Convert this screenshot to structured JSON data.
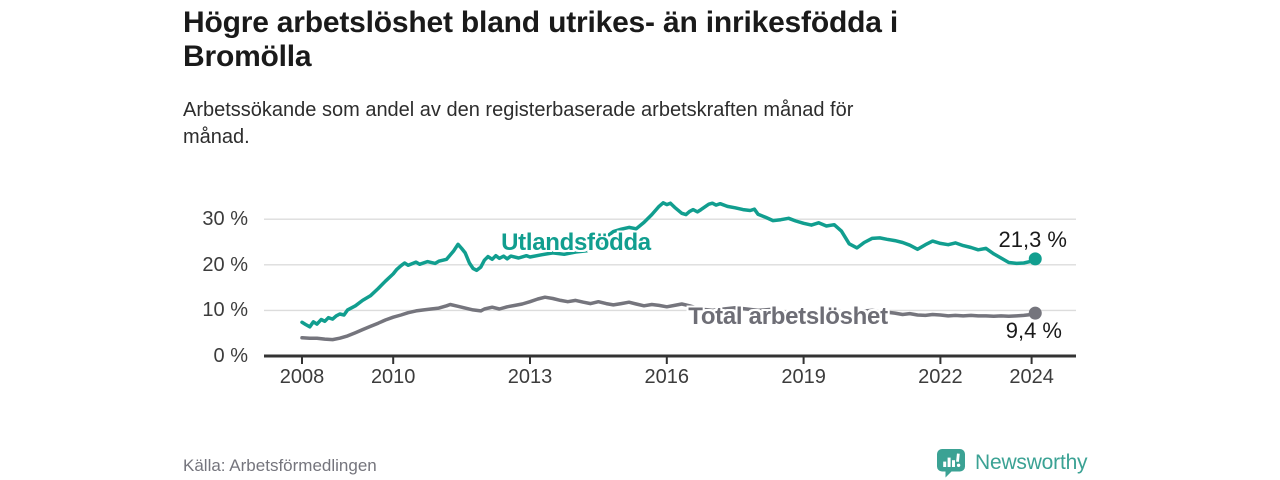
{
  "header": {
    "title_lines": [
      "Högre arbetslöshet bland utrikes- än inrikesfödda i",
      "Bromölla"
    ],
    "subtitle_lines": [
      "Arbetssökande som andel av den registerbaserade arbetskraften månad för",
      "månad."
    ]
  },
  "footer": {
    "source": "Källa: Arbetsförmedlingen",
    "brand": "Newsworthy",
    "brand_icon": "newsworthy-speech-bubble-bar-chart-icon",
    "brand_color": "#3ba294"
  },
  "colors": {
    "grid": "#dcdcdc",
    "axis": "#333333",
    "tick_text": "#3c3c3c",
    "title_text": "#1a1a1a",
    "source_text": "#75757d"
  },
  "chart_data": {
    "type": "line",
    "unit": "%",
    "grid": "horizontal-only",
    "ylim": [
      0,
      35.5
    ],
    "xlim": [
      2007.2,
      2025.0
    ],
    "y_ticks": [
      0,
      10,
      20,
      30
    ],
    "y_tick_labels": [
      "0 %",
      "10 %",
      "20 %",
      "30 %"
    ],
    "x_ticks": [
      2008,
      2010,
      2013,
      2016,
      2019,
      2022,
      2024
    ],
    "x_tick_labels": [
      "2008",
      "2010",
      "2013",
      "2016",
      "2019",
      "2022",
      "2024"
    ],
    "series": [
      {
        "name": "Utlandsfödda",
        "color": "#119e8f",
        "end_value": 21.3,
        "end_label": "21,3 %",
        "points": [
          [
            2008.0,
            7.4
          ],
          [
            2008.08,
            6.9
          ],
          [
            2008.17,
            6.4
          ],
          [
            2008.25,
            7.5
          ],
          [
            2008.33,
            7.0
          ],
          [
            2008.42,
            8.0
          ],
          [
            2008.5,
            7.6
          ],
          [
            2008.58,
            8.4
          ],
          [
            2008.67,
            8.1
          ],
          [
            2008.75,
            8.8
          ],
          [
            2008.83,
            9.2
          ],
          [
            2008.92,
            9.0
          ],
          [
            2009.0,
            10.1
          ],
          [
            2009.17,
            11.0
          ],
          [
            2009.33,
            12.2
          ],
          [
            2009.5,
            13.2
          ],
          [
            2009.67,
            14.8
          ],
          [
            2009.83,
            16.4
          ],
          [
            2010.0,
            18.0
          ],
          [
            2010.08,
            19.0
          ],
          [
            2010.17,
            19.8
          ],
          [
            2010.25,
            20.4
          ],
          [
            2010.33,
            19.9
          ],
          [
            2010.5,
            20.6
          ],
          [
            2010.58,
            20.1
          ],
          [
            2010.75,
            20.7
          ],
          [
            2010.92,
            20.3
          ],
          [
            2011.0,
            20.8
          ],
          [
            2011.17,
            21.2
          ],
          [
            2011.33,
            23.1
          ],
          [
            2011.42,
            24.5
          ],
          [
            2011.5,
            23.6
          ],
          [
            2011.58,
            22.6
          ],
          [
            2011.67,
            20.4
          ],
          [
            2011.75,
            19.2
          ],
          [
            2011.83,
            18.8
          ],
          [
            2011.92,
            19.5
          ],
          [
            2012.0,
            21.0
          ],
          [
            2012.08,
            21.8
          ],
          [
            2012.17,
            21.2
          ],
          [
            2012.25,
            22.0
          ],
          [
            2012.33,
            21.4
          ],
          [
            2012.42,
            21.9
          ],
          [
            2012.5,
            21.3
          ],
          [
            2012.58,
            21.9
          ],
          [
            2012.75,
            21.5
          ],
          [
            2012.92,
            22.0
          ],
          [
            2013.0,
            21.7
          ],
          [
            2013.25,
            22.2
          ],
          [
            2013.5,
            22.6
          ],
          [
            2013.75,
            22.3
          ],
          [
            2014.0,
            22.8
          ],
          [
            2014.25,
            23.1
          ],
          [
            2014.5,
            24.2
          ],
          [
            2014.67,
            26.1
          ],
          [
            2014.83,
            27.3
          ],
          [
            2015.0,
            27.8
          ],
          [
            2015.17,
            28.2
          ],
          [
            2015.33,
            27.9
          ],
          [
            2015.5,
            29.3
          ],
          [
            2015.67,
            31.0
          ],
          [
            2015.83,
            32.8
          ],
          [
            2015.92,
            33.6
          ],
          [
            2016.0,
            33.2
          ],
          [
            2016.08,
            33.5
          ],
          [
            2016.17,
            32.6
          ],
          [
            2016.33,
            31.3
          ],
          [
            2016.42,
            31.0
          ],
          [
            2016.5,
            31.7
          ],
          [
            2016.58,
            32.1
          ],
          [
            2016.67,
            31.6
          ],
          [
            2016.75,
            32.1
          ],
          [
            2016.92,
            33.3
          ],
          [
            2017.0,
            33.5
          ],
          [
            2017.08,
            33.1
          ],
          [
            2017.17,
            33.4
          ],
          [
            2017.33,
            32.8
          ],
          [
            2017.5,
            32.5
          ],
          [
            2017.67,
            32.1
          ],
          [
            2017.83,
            31.9
          ],
          [
            2017.92,
            32.2
          ],
          [
            2018.0,
            31.1
          ],
          [
            2018.17,
            30.4
          ],
          [
            2018.33,
            29.7
          ],
          [
            2018.5,
            29.9
          ],
          [
            2018.67,
            30.2
          ],
          [
            2018.83,
            29.6
          ],
          [
            2019.0,
            29.1
          ],
          [
            2019.17,
            28.7
          ],
          [
            2019.33,
            29.2
          ],
          [
            2019.5,
            28.5
          ],
          [
            2019.67,
            28.8
          ],
          [
            2019.83,
            27.4
          ],
          [
            2020.0,
            24.6
          ],
          [
            2020.17,
            23.7
          ],
          [
            2020.33,
            24.9
          ],
          [
            2020.5,
            25.8
          ],
          [
            2020.67,
            25.9
          ],
          [
            2020.83,
            25.6
          ],
          [
            2021.0,
            25.3
          ],
          [
            2021.17,
            24.9
          ],
          [
            2021.33,
            24.3
          ],
          [
            2021.5,
            23.4
          ],
          [
            2021.67,
            24.4
          ],
          [
            2021.83,
            25.2
          ],
          [
            2022.0,
            24.7
          ],
          [
            2022.17,
            24.4
          ],
          [
            2022.33,
            24.8
          ],
          [
            2022.5,
            24.2
          ],
          [
            2022.67,
            23.8
          ],
          [
            2022.83,
            23.3
          ],
          [
            2023.0,
            23.6
          ],
          [
            2023.17,
            22.4
          ],
          [
            2023.33,
            21.5
          ],
          [
            2023.5,
            20.5
          ],
          [
            2023.67,
            20.3
          ],
          [
            2023.83,
            20.4
          ],
          [
            2024.0,
            20.8
          ],
          [
            2024.08,
            21.3
          ]
        ]
      },
      {
        "name": "Total arbetslöshet",
        "color": "#75757d",
        "end_value": 9.4,
        "end_label": "9,4 %",
        "points": [
          [
            2008.0,
            4.0
          ],
          [
            2008.17,
            3.9
          ],
          [
            2008.33,
            3.9
          ],
          [
            2008.5,
            3.7
          ],
          [
            2008.67,
            3.6
          ],
          [
            2008.83,
            3.9
          ],
          [
            2009.0,
            4.4
          ],
          [
            2009.17,
            5.1
          ],
          [
            2009.33,
            5.8
          ],
          [
            2009.5,
            6.5
          ],
          [
            2009.67,
            7.2
          ],
          [
            2009.83,
            7.9
          ],
          [
            2010.0,
            8.5
          ],
          [
            2010.17,
            9.0
          ],
          [
            2010.33,
            9.5
          ],
          [
            2010.5,
            9.9
          ],
          [
            2010.67,
            10.1
          ],
          [
            2010.83,
            10.3
          ],
          [
            2011.0,
            10.5
          ],
          [
            2011.17,
            11.0
          ],
          [
            2011.25,
            11.3
          ],
          [
            2011.42,
            10.9
          ],
          [
            2011.58,
            10.5
          ],
          [
            2011.75,
            10.1
          ],
          [
            2011.92,
            9.9
          ],
          [
            2012.0,
            10.3
          ],
          [
            2012.17,
            10.7
          ],
          [
            2012.33,
            10.3
          ],
          [
            2012.5,
            10.8
          ],
          [
            2012.67,
            11.1
          ],
          [
            2012.83,
            11.4
          ],
          [
            2013.0,
            11.9
          ],
          [
            2013.17,
            12.5
          ],
          [
            2013.33,
            12.9
          ],
          [
            2013.5,
            12.6
          ],
          [
            2013.67,
            12.2
          ],
          [
            2013.83,
            11.9
          ],
          [
            2014.0,
            12.2
          ],
          [
            2014.17,
            11.8
          ],
          [
            2014.33,
            11.5
          ],
          [
            2014.5,
            11.9
          ],
          [
            2014.67,
            11.5
          ],
          [
            2014.83,
            11.2
          ],
          [
            2015.0,
            11.5
          ],
          [
            2015.17,
            11.8
          ],
          [
            2015.33,
            11.4
          ],
          [
            2015.5,
            11.0
          ],
          [
            2015.67,
            11.3
          ],
          [
            2015.83,
            11.1
          ],
          [
            2016.0,
            10.8
          ],
          [
            2016.17,
            11.1
          ],
          [
            2016.33,
            11.4
          ],
          [
            2016.5,
            11.0
          ],
          [
            2016.67,
            10.5
          ],
          [
            2016.83,
            10.2
          ],
          [
            2017.0,
            10.0
          ],
          [
            2017.25,
            10.3
          ],
          [
            2017.5,
            10.6
          ],
          [
            2017.75,
            10.3
          ],
          [
            2018.0,
            10.0
          ],
          [
            2018.25,
            10.2
          ],
          [
            2018.5,
            9.8
          ],
          [
            2018.75,
            9.5
          ],
          [
            2019.0,
            9.7
          ],
          [
            2019.25,
            9.4
          ],
          [
            2019.5,
            9.2
          ],
          [
            2019.75,
            9.4
          ],
          [
            2020.0,
            9.2
          ],
          [
            2020.25,
            9.8
          ],
          [
            2020.5,
            10.0
          ],
          [
            2020.75,
            9.7
          ],
          [
            2021.0,
            9.4
          ],
          [
            2021.17,
            9.1
          ],
          [
            2021.33,
            9.3
          ],
          [
            2021.5,
            9.0
          ],
          [
            2021.67,
            8.9
          ],
          [
            2021.83,
            9.1
          ],
          [
            2022.0,
            9.0
          ],
          [
            2022.17,
            8.8
          ],
          [
            2022.33,
            8.9
          ],
          [
            2022.5,
            8.8
          ],
          [
            2022.67,
            8.9
          ],
          [
            2022.83,
            8.8
          ],
          [
            2023.0,
            8.8
          ],
          [
            2023.17,
            8.7
          ],
          [
            2023.33,
            8.8
          ],
          [
            2023.5,
            8.7
          ],
          [
            2023.67,
            8.8
          ],
          [
            2023.83,
            8.9
          ],
          [
            2024.0,
            9.1
          ],
          [
            2024.08,
            9.4
          ]
        ]
      }
    ]
  }
}
